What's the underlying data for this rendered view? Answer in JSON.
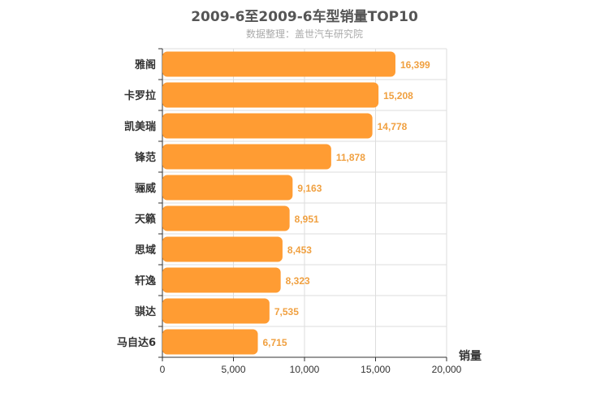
{
  "chart_data": {
    "type": "bar",
    "orientation": "horizontal",
    "title": "2009-6至2009-6车型销量TOP10",
    "subtitle": "数据整理：盖世汽车研究院",
    "xlabel": "销量",
    "ylabel": "",
    "categories": [
      "雅阁",
      "卡罗拉",
      "凯美瑞",
      "锋范",
      "骊威",
      "天籁",
      "思域",
      "轩逸",
      "骐达",
      "马自达6"
    ],
    "values": [
      16399,
      15208,
      14778,
      11878,
      9163,
      8951,
      8453,
      8323,
      7535,
      6715
    ],
    "value_labels": [
      "16,399",
      "15,208",
      "14,778",
      "11,878",
      "9,163",
      "8,951",
      "8,453",
      "8,323",
      "7,535",
      "6,715"
    ],
    "xlim": [
      0,
      20000
    ],
    "xticks": [
      0,
      5000,
      10000,
      15000,
      20000
    ],
    "xtick_labels": [
      "0",
      "5,000",
      "10,000",
      "15,000",
      "20,000"
    ],
    "grid": true,
    "bar_color": "#ff9c33",
    "label_color": "#f0a040"
  }
}
